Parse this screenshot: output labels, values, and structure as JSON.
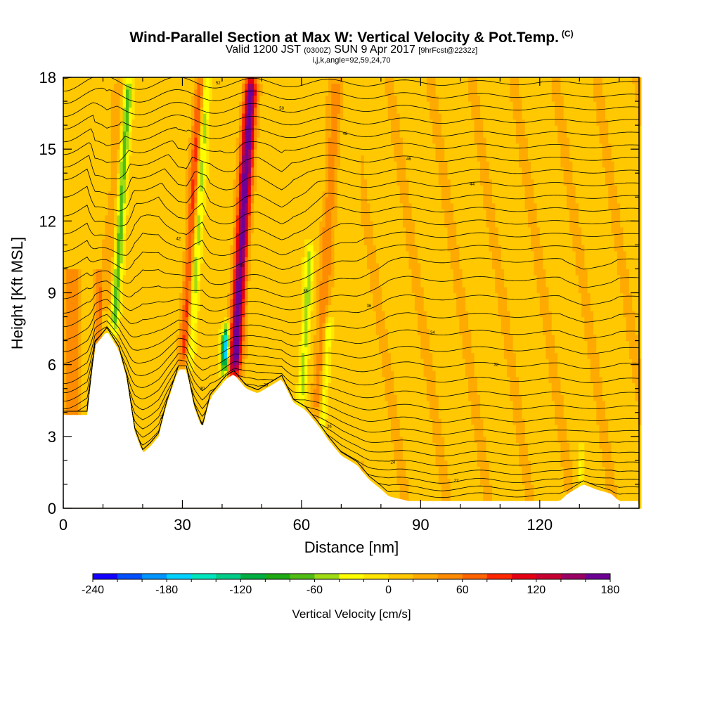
{
  "title": {
    "main": "Wind-Parallel Section at Max W: Vertical Velocity & Pot.Temp.",
    "copyright": "(C)",
    "line2_valid": "Valid 1200 JST",
    "line2_utc": "(0300Z)",
    "line2_date": "SUN 9 Apr 2017",
    "line2_fcst": "[9hrFcst@2232z]",
    "line3": "i,j,k,angle=92,59,24,70"
  },
  "chart_data": {
    "type": "heatmap",
    "xlabel": "Distance [nm]",
    "ylabel": "Height [Kft MSL]",
    "xlim": [
      0,
      145
    ],
    "ylim": [
      0,
      18
    ],
    "xticks": [
      "0",
      "30",
      "60",
      "90",
      "120"
    ],
    "yticks": [
      "0",
      "3",
      "6",
      "9",
      "12",
      "15",
      "18"
    ],
    "colorbar": {
      "label": "Vertical Velocity [cm/s]",
      "range": [
        -240,
        180
      ],
      "step": 20,
      "tick_labels": [
        "-240",
        "-180",
        "-120",
        "-60",
        "0",
        "60",
        "120",
        "180"
      ],
      "colors": [
        "#1400ff",
        "#0050ff",
        "#0096ff",
        "#00d2ff",
        "#00e6be",
        "#00cd87",
        "#00af41",
        "#1eaa14",
        "#50be14",
        "#a0dc14",
        "#ffff00",
        "#ffe600",
        "#ffc800",
        "#ffaa00",
        "#ff8c00",
        "#ff6400",
        "#ff2800",
        "#e60014",
        "#c80032",
        "#9b0064",
        "#6e0096"
      ]
    },
    "terrain_kft": [
      [
        0,
        3.9
      ],
      [
        6,
        3.9
      ],
      [
        8,
        6.8
      ],
      [
        11,
        7.4
      ],
      [
        14,
        6.6
      ],
      [
        16,
        5.4
      ],
      [
        18,
        3.2
      ],
      [
        20,
        2.3
      ],
      [
        22,
        2.6
      ],
      [
        24,
        3.0
      ],
      [
        26,
        4.3
      ],
      [
        29,
        5.8
      ],
      [
        31,
        5.8
      ],
      [
        33,
        4.2
      ],
      [
        35,
        3.3
      ],
      [
        37,
        4.6
      ],
      [
        39,
        5.0
      ],
      [
        41,
        5.4
      ],
      [
        43,
        5.6
      ],
      [
        46,
        5.0
      ],
      [
        49,
        4.8
      ],
      [
        52,
        5.1
      ],
      [
        55,
        5.4
      ],
      [
        58,
        4.4
      ],
      [
        61,
        4.1
      ],
      [
        64,
        3.5
      ],
      [
        67,
        2.8
      ],
      [
        70,
        2.2
      ],
      [
        74,
        1.8
      ],
      [
        77,
        1.2
      ],
      [
        80,
        0.8
      ],
      [
        82,
        0.5
      ],
      [
        87,
        0.3
      ],
      [
        92,
        0.3
      ],
      [
        100,
        0.3
      ],
      [
        108,
        0.3
      ],
      [
        115,
        0.3
      ],
      [
        125,
        0.3
      ],
      [
        127,
        0.6
      ],
      [
        131,
        1.0
      ],
      [
        134,
        0.8
      ],
      [
        138,
        0.6
      ],
      [
        140,
        0.3
      ],
      [
        145,
        0.3
      ]
    ],
    "updraft_bands": [
      {
        "x": 11,
        "w": 1.8,
        "z0": 8,
        "z1": 18,
        "amp": 25
      },
      {
        "x": 30.5,
        "w": 1.4,
        "z0": 6,
        "z1": 18,
        "amp": 85
      },
      {
        "x": 43,
        "w": 1.6,
        "z0": 5.5,
        "z1": 18,
        "amp": 170
      },
      {
        "x": 64,
        "w": 1.6,
        "z0": 4,
        "z1": 18,
        "amp": 45
      }
    ],
    "downdraft_bands": [
      {
        "x": 12.8,
        "w": 1.1,
        "z0": 7.5,
        "z1": 18,
        "amp": -85
      },
      {
        "x": 31.8,
        "w": 1.1,
        "z0": 6,
        "z1": 18,
        "amp": -80
      },
      {
        "x": 40.5,
        "w": 0.9,
        "z0": 5.8,
        "z1": 7.5,
        "amp": -190
      },
      {
        "x": 60,
        "w": 1.0,
        "z0": 4.5,
        "z1": 11,
        "amp": -60
      },
      {
        "x": 65.2,
        "w": 0.9,
        "z0": 3.2,
        "z1": 8,
        "amp": -55
      },
      {
        "x": 130,
        "w": 0.7,
        "z0": 0.8,
        "z1": 2.5,
        "amp": -40
      }
    ],
    "theta_contours": {
      "base_level_count": 34,
      "labels": [
        "20",
        "22",
        "24",
        "26",
        "28",
        "30",
        "32",
        "34",
        "36",
        "38",
        "40",
        "42",
        "44",
        "46",
        "48",
        "50",
        "52",
        "54"
      ]
    }
  }
}
